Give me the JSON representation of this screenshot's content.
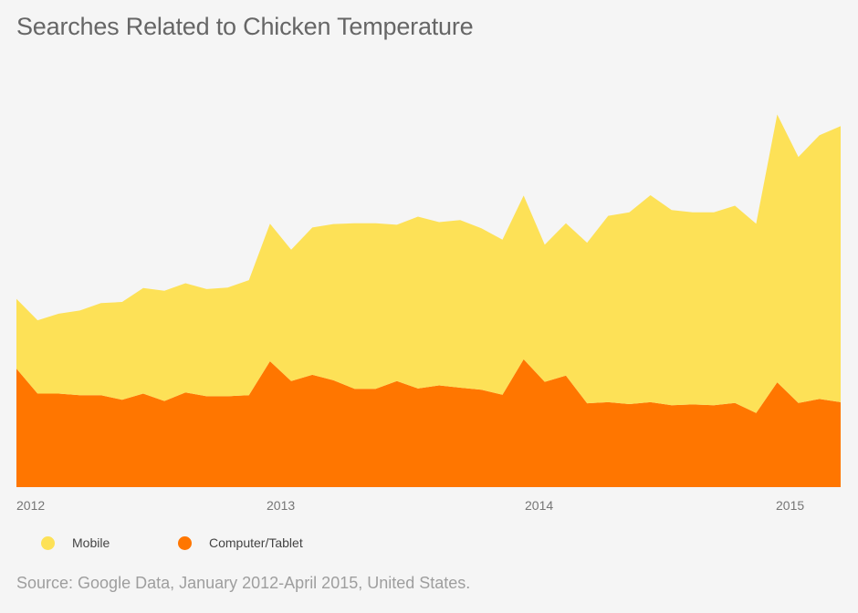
{
  "colors": {
    "background": "#f5f5f5",
    "mobile": "#fde157",
    "computer": "#ff7600",
    "title": "#666666",
    "source": "#9e9e9e"
  },
  "chart_data": {
    "type": "area",
    "stacked": true,
    "title": "Searches Related to Chicken Temperature",
    "source": "Source: Google Data, January 2012-April 2015, United States.",
    "x_tick_labels": [
      "2012",
      "2013",
      "2014",
      "2015"
    ],
    "x": [
      "2012-01",
      "2012-02",
      "2012-03",
      "2012-04",
      "2012-05",
      "2012-06",
      "2012-07",
      "2012-08",
      "2012-09",
      "2012-10",
      "2012-11",
      "2012-12",
      "2013-01",
      "2013-02",
      "2013-03",
      "2013-04",
      "2013-05",
      "2013-06",
      "2013-07",
      "2013-08",
      "2013-09",
      "2013-10",
      "2013-11",
      "2013-12",
      "2014-01",
      "2014-02",
      "2014-03",
      "2014-04",
      "2014-05",
      "2014-06",
      "2014-07",
      "2014-08",
      "2014-09",
      "2014-10",
      "2014-11",
      "2014-12",
      "2015-01",
      "2015-02",
      "2015-03",
      "2015-04"
    ],
    "legend_position": "bottom-left",
    "grid": false,
    "series": [
      {
        "name": "Computer/Tablet",
        "color": "#ff7600",
        "values": [
          30.4,
          24.0,
          24.0,
          23.6,
          23.6,
          22.4,
          24.0,
          22.1,
          24.3,
          23.3,
          23.3,
          23.6,
          32.3,
          27.2,
          28.8,
          27.4,
          25.2,
          25.2,
          27.2,
          25.3,
          26.1,
          25.5,
          25.0,
          23.7,
          32.8,
          27.0,
          28.6,
          21.5,
          21.8,
          21.3,
          21.8,
          21.0,
          21.2,
          21.0,
          21.6,
          19.0,
          26.9,
          21.6,
          22.6,
          21.8
        ]
      },
      {
        "name": "Mobile",
        "color": "#fde157",
        "values": [
          17.9,
          18.8,
          20.5,
          21.7,
          23.6,
          25.1,
          27.1,
          28.3,
          28.0,
          27.5,
          27.9,
          29.5,
          35.3,
          33.7,
          37.8,
          40.1,
          42.5,
          42.5,
          40.1,
          44.1,
          41.9,
          43.0,
          41.4,
          39.8,
          42.0,
          35.2,
          39.1,
          41.2,
          47.8,
          49.2,
          53.1,
          50.1,
          49.3,
          49.5,
          50.6,
          48.6,
          68.7,
          63.1,
          67.7,
          70.8
        ]
      }
    ],
    "ylim": [
      0,
      110
    ],
    "ylabel": "",
    "xlabel": ""
  }
}
